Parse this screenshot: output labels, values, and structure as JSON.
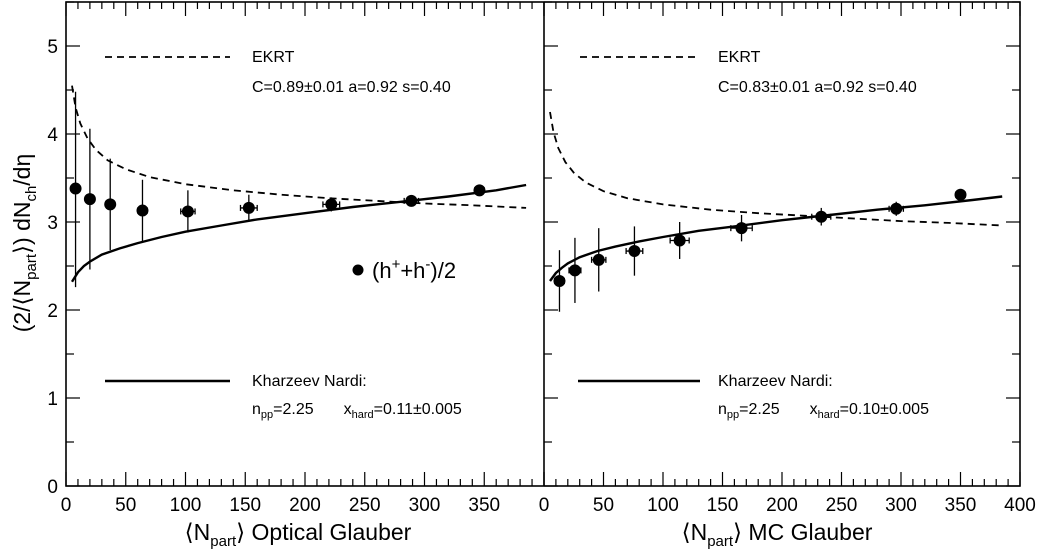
{
  "chart_data": {
    "type": "scatter",
    "ylabel_parts": {
      "a": "(2/",
      "b": "N",
      "c": "part",
      "d": ")  dN",
      "e": "ch",
      "f": "/dη"
    },
    "ylim": [
      0,
      5.5
    ],
    "yticks": [
      "0",
      "1",
      "2",
      "3",
      "4",
      "5"
    ],
    "series_marker_label": {
      "base": "(h",
      "sup1": "+",
      "mid": "+h",
      "sup2": "-",
      "end": ")/2"
    },
    "panels": [
      {
        "xlabel_parts": {
          "a": "N",
          "b": "part",
          "c": "  Optical Glauber"
        },
        "xlim": [
          0,
          400
        ],
        "xticks": [
          "0",
          "50",
          "100",
          "150",
          "200",
          "250",
          "300",
          "350"
        ],
        "ekrt": {
          "label": "EKRT",
          "params": "C=0.89±0.01  a=0.92  s=0.40",
          "curve": {
            "x": [
              5,
              8,
              12,
              18,
              25,
              35,
              50,
              70,
              100,
              140,
              180,
              220,
              260,
              300,
              340,
              385
            ],
            "y": [
              4.55,
              4.3,
              4.12,
              3.95,
              3.82,
              3.7,
              3.6,
              3.51,
              3.43,
              3.36,
              3.31,
              3.27,
              3.24,
              3.21,
              3.19,
              3.16
            ]
          }
        },
        "kn": {
          "label": "Kharzeev Nardi:",
          "npp": "2.25",
          "xhard": "0.11±0.005",
          "curve": {
            "x": [
              5,
              10,
              15,
              20,
              30,
              45,
              60,
              80,
              100,
              130,
              160,
              200,
              240,
              280,
              320,
              360,
              385
            ],
            "y": [
              2.32,
              2.43,
              2.5,
              2.55,
              2.63,
              2.7,
              2.76,
              2.83,
              2.89,
              2.96,
              3.03,
              3.1,
              3.17,
              3.23,
              3.29,
              3.36,
              3.42
            ]
          }
        },
        "points": [
          {
            "x": 8,
            "y": 3.38,
            "xerr": 1,
            "yerr_hi": 1.1,
            "yerr_lo": 1.12
          },
          {
            "x": 20,
            "y": 3.26,
            "xerr": 2,
            "yerr_hi": 0.8,
            "yerr_lo": 0.8
          },
          {
            "x": 37,
            "y": 3.2,
            "xerr": 3,
            "yerr_hi": 0.52,
            "yerr_lo": 0.52
          },
          {
            "x": 64,
            "y": 3.13,
            "xerr": 4,
            "yerr_hi": 0.35,
            "yerr_lo": 0.35
          },
          {
            "x": 102,
            "y": 3.12,
            "xerr": 6,
            "yerr_hi": 0.24,
            "yerr_lo": 0.24
          },
          {
            "x": 153,
            "y": 3.16,
            "xerr": 7,
            "yerr_hi": 0.15,
            "yerr_lo": 0.15
          },
          {
            "x": 222,
            "y": 3.2,
            "xerr": 7,
            "yerr_hi": 0.08,
            "yerr_lo": 0.08
          },
          {
            "x": 289,
            "y": 3.24,
            "xerr": 6,
            "yerr_hi": 0.06,
            "yerr_lo": 0.06
          },
          {
            "x": 346,
            "y": 3.36,
            "xerr": 4,
            "yerr_hi": 0.04,
            "yerr_lo": 0.04
          }
        ]
      },
      {
        "xlabel_parts": {
          "a": "N",
          "b": "part",
          "c": "  MC Glauber"
        },
        "xlim": [
          0,
          400
        ],
        "xticks": [
          "0",
          "50",
          "100",
          "150",
          "200",
          "250",
          "300",
          "350",
          "400"
        ],
        "ekrt": {
          "label": "EKRT",
          "params": "C=0.83±0.01  a=0.92  s=0.40",
          "curve": {
            "x": [
              5,
              8,
              12,
              18,
              25,
              35,
              50,
              70,
              100,
              140,
              180,
              220,
              260,
              300,
              340,
              385
            ],
            "y": [
              4.25,
              4.02,
              3.84,
              3.68,
              3.56,
              3.45,
              3.35,
              3.27,
              3.2,
              3.14,
              3.1,
              3.07,
              3.04,
              3.01,
              2.99,
              2.96
            ]
          }
        },
        "kn": {
          "label": "Kharzeev Nardi:",
          "npp": "2.25",
          "xhard": "0.10±0.005",
          "curve": {
            "x": [
              5,
              10,
              15,
              20,
              30,
              45,
              60,
              80,
              100,
              130,
              160,
              200,
              240,
              280,
              320,
              360,
              385
            ],
            "y": [
              2.33,
              2.42,
              2.48,
              2.53,
              2.6,
              2.67,
              2.72,
              2.78,
              2.83,
              2.9,
              2.95,
              3.02,
              3.08,
              3.14,
              3.19,
              3.25,
              3.29
            ]
          }
        },
        "points": [
          {
            "x": 13,
            "y": 2.33,
            "xerr": 4,
            "yerr_hi": 0.35,
            "yerr_lo": 0.35
          },
          {
            "x": 26,
            "y": 2.45,
            "xerr": 5,
            "yerr_hi": 0.37,
            "yerr_lo": 0.37
          },
          {
            "x": 46,
            "y": 2.57,
            "xerr": 6,
            "yerr_hi": 0.36,
            "yerr_lo": 0.36
          },
          {
            "x": 76,
            "y": 2.67,
            "xerr": 7,
            "yerr_hi": 0.28,
            "yerr_lo": 0.28
          },
          {
            "x": 114,
            "y": 2.79,
            "xerr": 8,
            "yerr_hi": 0.21,
            "yerr_lo": 0.21
          },
          {
            "x": 166,
            "y": 2.93,
            "xerr": 9,
            "yerr_hi": 0.15,
            "yerr_lo": 0.15
          },
          {
            "x": 233,
            "y": 3.06,
            "xerr": 8,
            "yerr_hi": 0.1,
            "yerr_lo": 0.1
          },
          {
            "x": 296,
            "y": 3.15,
            "xerr": 6,
            "yerr_hi": 0.08,
            "yerr_lo": 0.08
          },
          {
            "x": 350,
            "y": 3.31,
            "xerr": 4,
            "yerr_hi": 0.06,
            "yerr_lo": 0.06
          }
        ]
      }
    ]
  }
}
